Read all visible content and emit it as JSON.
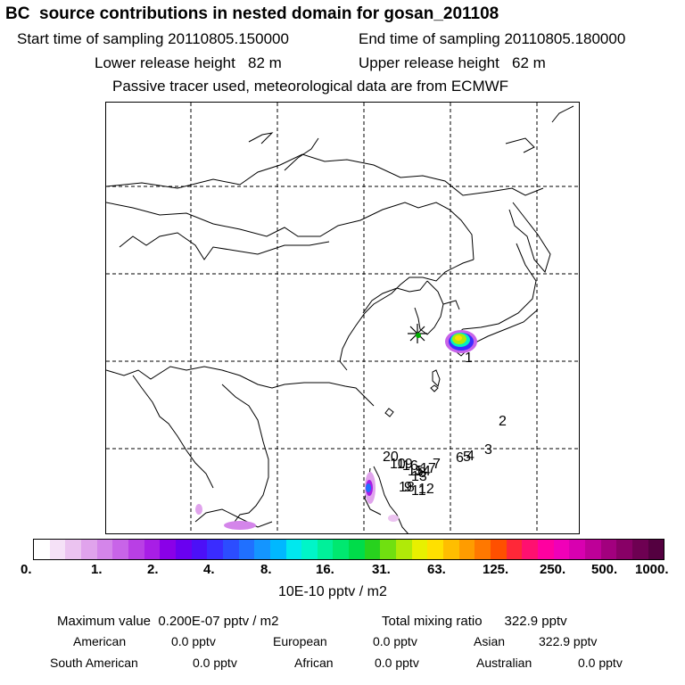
{
  "header": {
    "title": "BC  source contributions in nested domain for gosan_201108",
    "start_label": "Start time of sampling 20110805.150000",
    "end_label": "End time of sampling 20110805.180000",
    "lower_label": "Lower release height   82 m",
    "upper_label": "Upper release height   62 m",
    "tracer_note": "Passive tracer used, meteorological data are from ECMWF"
  },
  "map": {
    "trajectory_labels": [
      "1",
      "2",
      "3",
      "4",
      "5",
      "6",
      "7",
      "8",
      "9",
      "10",
      "11",
      "12",
      "13",
      "14",
      "15",
      "16",
      "17",
      "18",
      "19",
      "20"
    ],
    "receptor_marker": "asterisk"
  },
  "colorbar": {
    "colors": [
      "#ffffff",
      "#f5e1f7",
      "#ebc3f0",
      "#e0a3ec",
      "#d485ea",
      "#c864e8",
      "#b93fe5",
      "#a81ee6",
      "#8a00e8",
      "#6a00f0",
      "#4c10f7",
      "#3a2cff",
      "#2c4dff",
      "#2070ff",
      "#1495ff",
      "#00b8ff",
      "#00e8ee",
      "#00f5c8",
      "#00f09a",
      "#00e870",
      "#00dc4a",
      "#28d21e",
      "#70e010",
      "#b0ea08",
      "#e8f000",
      "#ffe000",
      "#ffbe00",
      "#ff9c00",
      "#ff7800",
      "#ff5000",
      "#ff2838",
      "#ff1070",
      "#ff00a0",
      "#f000b8",
      "#d800b0",
      "#be0098",
      "#a2007e",
      "#880066",
      "#6e0052",
      "#540040"
    ],
    "tick_labels": [
      "0.",
      "1.",
      "2.",
      "4.",
      "8.",
      "16.",
      "31.",
      "63.",
      "125.",
      "250.",
      "500.",
      "1000."
    ],
    "units": "10E-10 pptv / m2"
  },
  "stats": {
    "max_label": "Maximum value  0.200E-07 pptv / m2",
    "total_label": "Total mixing ratio      322.9 pptv",
    "regions": [
      {
        "name": "American",
        "value": "0.0 pptv"
      },
      {
        "name": "European",
        "value": "0.0 pptv"
      },
      {
        "name": "Asian",
        "value": "322.9 pptv"
      },
      {
        "name": "South American",
        "value": "0.0 pptv"
      },
      {
        "name": "African",
        "value": "0.0 pptv"
      },
      {
        "name": "Australian",
        "value": "0.0 pptv"
      }
    ]
  }
}
